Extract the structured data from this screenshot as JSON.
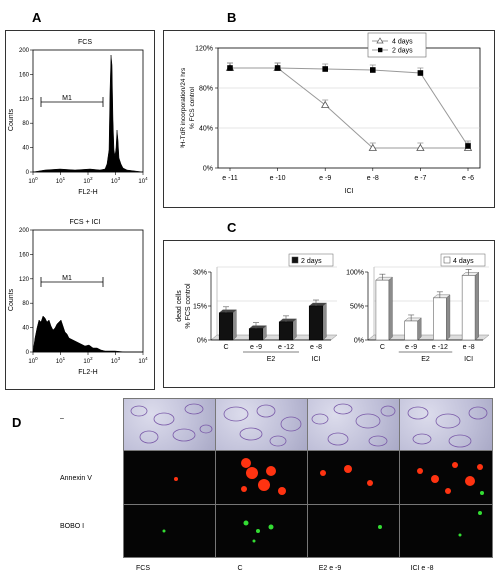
{
  "panels": {
    "A": {
      "letter": "A",
      "top": {
        "title": "FCS",
        "ylabel": "Counts",
        "xlabel": "FL2-H",
        "gate": "M1",
        "yticks": [
          "0",
          "40",
          "80",
          "120",
          "160",
          "200"
        ],
        "xticks": [
          {
            "base": "10",
            "exp": "0"
          },
          {
            "base": "10",
            "exp": "1"
          },
          {
            "base": "10",
            "exp": "2"
          },
          {
            "base": "10",
            "exp": "3"
          },
          {
            "base": "10",
            "exp": "4"
          }
        ]
      },
      "bottom": {
        "title": "FCS + ICI",
        "ylabel": "Counts",
        "xlabel": "FL2-H",
        "gate": "M1",
        "yticks": [
          "0",
          "40",
          "80",
          "120",
          "160",
          "200"
        ],
        "xticks": [
          {
            "base": "10",
            "exp": "0"
          },
          {
            "base": "10",
            "exp": "1"
          },
          {
            "base": "10",
            "exp": "2"
          },
          {
            "base": "10",
            "exp": "3"
          },
          {
            "base": "10",
            "exp": "4"
          }
        ]
      }
    },
    "B": {
      "letter": "B"
    },
    "C": {
      "letter": "C"
    },
    "D": {
      "letter": "D",
      "row_labels": [
        "–",
        "Annexin V",
        "BOBO I"
      ],
      "col_labels": [
        "FCS",
        "C",
        "E2 e -9",
        "ICI  e -8"
      ]
    }
  },
  "chart_data": [
    {
      "id": "B",
      "type": "line",
      "ylabel_line1": "³H-TdR incorporation/24 hrs",
      "ylabel_line2": "% FCS control",
      "xlabel": "ICI",
      "categories": [
        "e -11",
        "e -10",
        "e -9",
        "e -8",
        "e -7",
        "e -6"
      ],
      "ylim": [
        0,
        120
      ],
      "yticks": [
        "0%",
        "40%",
        "80%",
        "120%"
      ],
      "legend_position": "top-right",
      "series": [
        {
          "name": "4 days",
          "marker": "open-triangle",
          "values": [
            100,
            100,
            63,
            20,
            20,
            20
          ]
        },
        {
          "name": "2 days",
          "marker": "filled-square",
          "values": [
            100,
            100,
            99,
            98,
            95,
            22
          ]
        }
      ]
    },
    {
      "id": "C-left",
      "type": "bar",
      "ylabel_line1": "dead cells",
      "ylabel_line2": "% FCS control",
      "categories": [
        "C",
        "e -9",
        "e -12",
        "e -8"
      ],
      "group_labels": [
        "E2",
        "ICI"
      ],
      "ylim": [
        0,
        30
      ],
      "yticks": [
        "0%",
        "15%",
        "30%"
      ],
      "legend_position": "top-right",
      "series": [
        {
          "name": "2 days",
          "fill": "filled",
          "values": [
            12,
            5,
            8,
            15
          ]
        }
      ]
    },
    {
      "id": "C-right",
      "type": "bar",
      "categories": [
        "C",
        "e -9",
        "e -12",
        "e -8"
      ],
      "group_labels": [
        "E2",
        "ICI"
      ],
      "ylim": [
        0,
        100
      ],
      "yticks": [
        "0%",
        "50%",
        "100%"
      ],
      "legend_position": "top-right",
      "series": [
        {
          "name": "4 days",
          "fill": "open",
          "values": [
            88,
            28,
            62,
            95
          ]
        }
      ]
    }
  ],
  "colors": {
    "annexin": "#ff3311",
    "bobo": "#33dd33",
    "bar_fill": "#111111",
    "bar_open": "#ffffff",
    "bar_side": "#8c8c8c"
  }
}
